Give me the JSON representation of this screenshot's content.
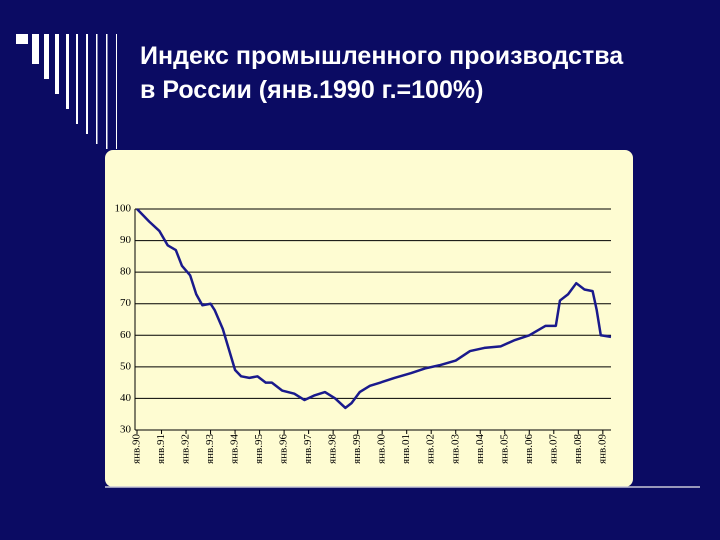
{
  "chart_data": {
    "type": "line",
    "title": [
      "Индекс промышленного производства",
      "в России (янв.1990 г.=100%)"
    ],
    "x": [
      0,
      6,
      11,
      15,
      19,
      22,
      26,
      29,
      32,
      36,
      38,
      42,
      45,
      48,
      51,
      55,
      59,
      63,
      66,
      71,
      77,
      82,
      87,
      92,
      97,
      102,
      105,
      109,
      114,
      119,
      126,
      134,
      141,
      148,
      156,
      163,
      170,
      178,
      185,
      192,
      200,
      205,
      207,
      211,
      215,
      219,
      223,
      225,
      227,
      232
    ],
    "series": [
      {
        "color": "#1a1a8c",
        "values": [
          100,
          96,
          93,
          88.5,
          87,
          82,
          79,
          73,
          69.5,
          70,
          68,
          62,
          55.5,
          49,
          47,
          46.5,
          47,
          45,
          45,
          42.5,
          41.5,
          39.5,
          41,
          42,
          40,
          37,
          38.5,
          42,
          44,
          45,
          46.5,
          48,
          49.5,
          50.5,
          52,
          55,
          56,
          56.5,
          58.5,
          60,
          63,
          63,
          71,
          73,
          76.5,
          74.5,
          74,
          68,
          60,
          59.5
        ]
      }
    ],
    "xlim": [
      0,
      232
    ],
    "xticks": [
      {
        "value": 0,
        "label": "янв.90"
      },
      {
        "value": 12,
        "label": "янв.91"
      },
      {
        "value": 24,
        "label": "янв.92"
      },
      {
        "value": 36,
        "label": "янв.93"
      },
      {
        "value": 48,
        "label": "янв.94"
      },
      {
        "value": 60,
        "label": "янв.95"
      },
      {
        "value": 72,
        "label": "янв.96"
      },
      {
        "value": 84,
        "label": "янв.97"
      },
      {
        "value": 96,
        "label": "янв.98"
      },
      {
        "value": 108,
        "label": "янв.99"
      },
      {
        "value": 120,
        "label": "янв.00"
      },
      {
        "value": 132,
        "label": "янв.01"
      },
      {
        "value": 144,
        "label": "янв.02"
      },
      {
        "value": 156,
        "label": "янв.03"
      },
      {
        "value": 168,
        "label": "янв.04"
      },
      {
        "value": 180,
        "label": "янв.05"
      },
      {
        "value": 192,
        "label": "янв.06"
      },
      {
        "value": 204,
        "label": "янв.07"
      },
      {
        "value": 216,
        "label": "янв.08"
      },
      {
        "value": 228,
        "label": "янв.09"
      }
    ],
    "ylim": [
      30,
      100
    ],
    "yticks": [
      30,
      40,
      50,
      60,
      70,
      80,
      90,
      100
    ],
    "grid": true
  }
}
